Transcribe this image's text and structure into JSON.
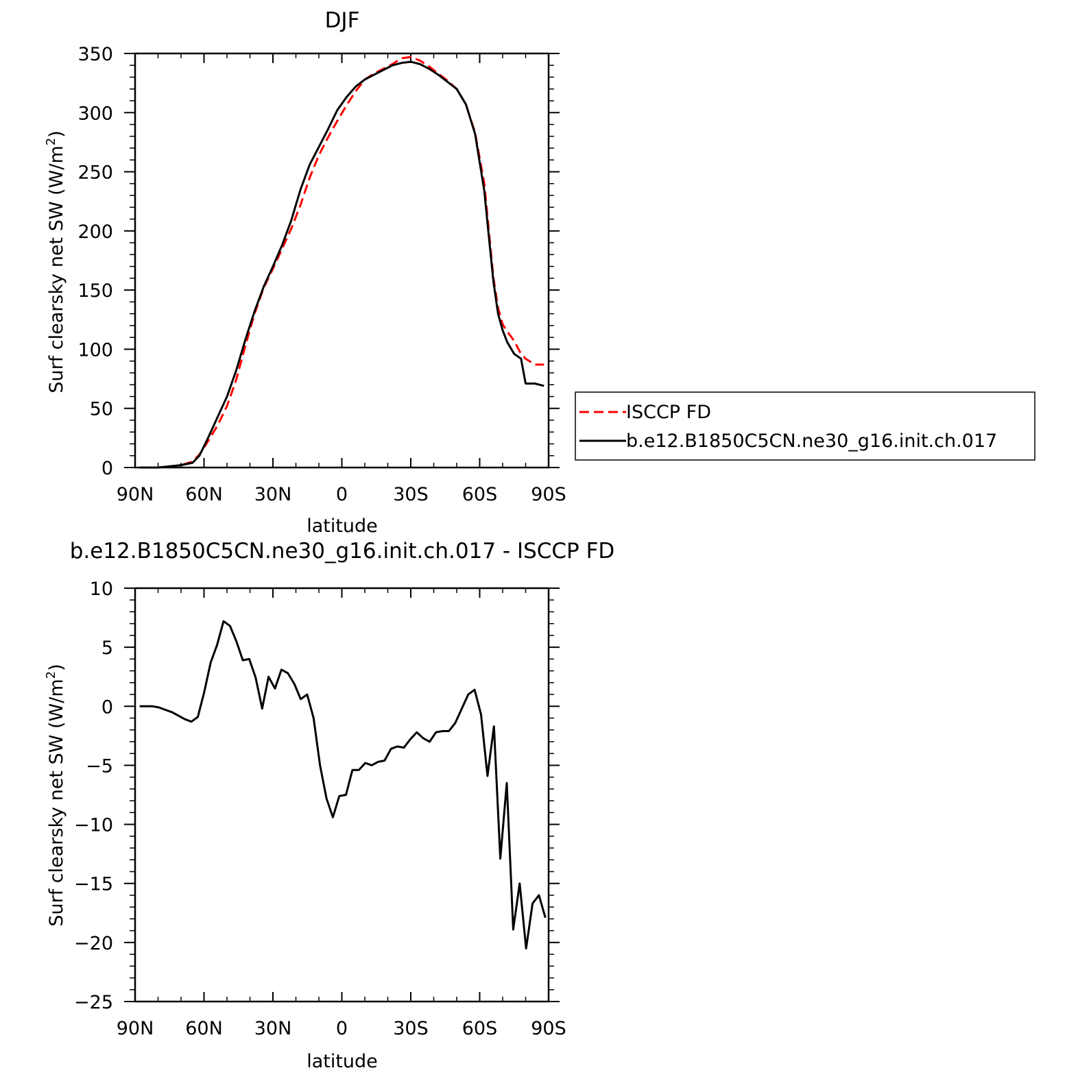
{
  "chart_data": [
    {
      "type": "line",
      "title": "DJF",
      "xlabel": "latitude",
      "ylabel": "Surf clearsky net SW (W/m²)",
      "ylabel_main": "Surf clearsky net SW (W/m",
      "ylabel_sup": "2",
      "ylabel_close": ")",
      "xlim": [
        90,
        -90
      ],
      "ylim": [
        0,
        350
      ],
      "xticks": [
        {
          "value": 90,
          "label": "90N"
        },
        {
          "value": 60,
          "label": "60N"
        },
        {
          "value": 30,
          "label": "30N"
        },
        {
          "value": 0,
          "label": "0"
        },
        {
          "value": -30,
          "label": "30S"
        },
        {
          "value": -60,
          "label": "60S"
        },
        {
          "value": -90,
          "label": "90S"
        }
      ],
      "yticks": [
        0,
        50,
        100,
        150,
        200,
        250,
        300,
        350
      ],
      "grid": false,
      "legend_position": "right",
      "series": [
        {
          "name": "ISCCP FD",
          "color": "#ff0000",
          "style": "dashed",
          "x": [
            88,
            80,
            75,
            70,
            65,
            62,
            58,
            54,
            50,
            46,
            42,
            38,
            34,
            30,
            26,
            22,
            18,
            14,
            10,
            6,
            2,
            -2,
            -6,
            -10,
            -14,
            -18,
            -22,
            -26,
            -30,
            -34,
            -38,
            -42,
            -46,
            -50,
            -54,
            -58,
            -62,
            -64,
            -66,
            -68,
            -70,
            -72,
            -75,
            -78,
            -80,
            -84,
            -88
          ],
          "y": [
            0,
            0,
            1,
            2,
            5,
            11,
            23,
            36,
            52,
            74,
            103,
            130,
            152,
            168,
            185,
            202,
            222,
            245,
            264,
            279,
            293,
            306,
            318,
            328,
            333,
            337,
            341,
            346,
            347,
            344,
            339,
            333,
            327,
            320,
            307,
            283,
            240,
            200,
            160,
            135,
            121,
            115,
            107,
            96,
            92,
            87,
            87
          ]
        },
        {
          "name": "b.e12.B1850C5CN.ne30_g16.init.ch.017",
          "color": "#000000",
          "style": "solid",
          "x": [
            88,
            80,
            75,
            70,
            65,
            62,
            58,
            54,
            50,
            46,
            42,
            38,
            34,
            30,
            26,
            22,
            18,
            14,
            10,
            6,
            2,
            -2,
            -6,
            -10,
            -14,
            -18,
            -22,
            -26,
            -30,
            -34,
            -38,
            -42,
            -46,
            -50,
            -54,
            -58,
            -62,
            -64,
            -66,
            -68,
            -70,
            -72,
            -75,
            -78,
            -80,
            -84,
            -88
          ],
          "y": [
            0,
            0,
            1,
            2,
            4,
            10,
            26,
            43,
            60,
            82,
            108,
            132,
            153,
            170,
            188,
            209,
            235,
            256,
            271,
            286,
            302,
            313,
            322,
            328,
            332,
            336,
            340,
            342,
            343,
            341,
            337,
            332,
            326,
            320,
            307,
            282,
            234,
            195,
            157,
            130,
            116,
            106,
            96,
            92,
            71,
            71,
            69
          ]
        }
      ]
    },
    {
      "type": "line",
      "title": "b.e12.B1850C5CN.ne30_g16.init.ch.017 - ISCCP FD",
      "xlabel": "latitude",
      "ylabel": "Surf clearsky net SW (W/m²)",
      "ylabel_main": "Surf clearsky net SW (W/m",
      "ylabel_sup": "2",
      "ylabel_close": ")",
      "xlim": [
        90,
        -90
      ],
      "ylim": [
        -25,
        10
      ],
      "xticks": [
        {
          "value": 90,
          "label": "90N"
        },
        {
          "value": 60,
          "label": "60N"
        },
        {
          "value": 30,
          "label": "30N"
        },
        {
          "value": 0,
          "label": "0"
        },
        {
          "value": -30,
          "label": "30S"
        },
        {
          "value": -60,
          "label": "60S"
        },
        {
          "value": -90,
          "label": "90S"
        }
      ],
      "yticks": [
        10,
        5,
        0,
        -5,
        -10,
        -15,
        -20,
        -25
      ],
      "grid": false,
      "series": [
        {
          "color": "#000000",
          "style": "solid",
          "x": [
            88.0,
            85.2,
            82.4,
            79.6,
            76.8,
            73.9,
            71.1,
            68.3,
            65.5,
            62.7,
            59.9,
            57.1,
            54.3,
            51.5,
            48.7,
            45.9,
            43.1,
            40.3,
            37.5,
            34.7,
            31.9,
            29.1,
            26.3,
            23.5,
            20.7,
            17.9,
            15.1,
            12.3,
            9.5,
            6.7,
            3.9,
            1.1,
            -1.8,
            -4.6,
            -7.4,
            -10.2,
            -13.0,
            -15.8,
            -18.6,
            -21.4,
            -24.2,
            -27.0,
            -29.8,
            -32.6,
            -35.4,
            -38.2,
            -41.0,
            -43.8,
            -46.6,
            -49.4,
            -52.2,
            -55.0,
            -57.8,
            -60.6,
            -63.4,
            -66.2,
            -69.0,
            -71.8,
            -74.6,
            -77.4,
            -80.2,
            -83.0,
            -85.8,
            -88.6
          ],
          "y": [
            0.0,
            0.0,
            0.0,
            -0.1,
            -0.3,
            -0.5,
            -0.8,
            -1.1,
            -1.3,
            -0.9,
            1.2,
            3.7,
            5.2,
            7.2,
            6.8,
            5.5,
            3.9,
            4.0,
            2.4,
            -0.2,
            2.5,
            1.5,
            3.1,
            2.8,
            1.9,
            0.6,
            1.0,
            -1.0,
            -5.0,
            -7.8,
            -9.4,
            -7.6,
            -7.5,
            -5.4,
            -5.4,
            -4.8,
            -5.0,
            -4.7,
            -4.6,
            -3.6,
            -3.4,
            -3.5,
            -2.8,
            -2.2,
            -2.7,
            -3.0,
            -2.2,
            -2.1,
            -2.1,
            -1.4,
            -0.2,
            1.0,
            1.4,
            -0.7,
            -5.9,
            -1.7,
            -12.9,
            -6.5,
            -18.9,
            -15.0,
            -20.5,
            -16.7,
            -16.0,
            -17.9
          ]
        }
      ]
    }
  ]
}
